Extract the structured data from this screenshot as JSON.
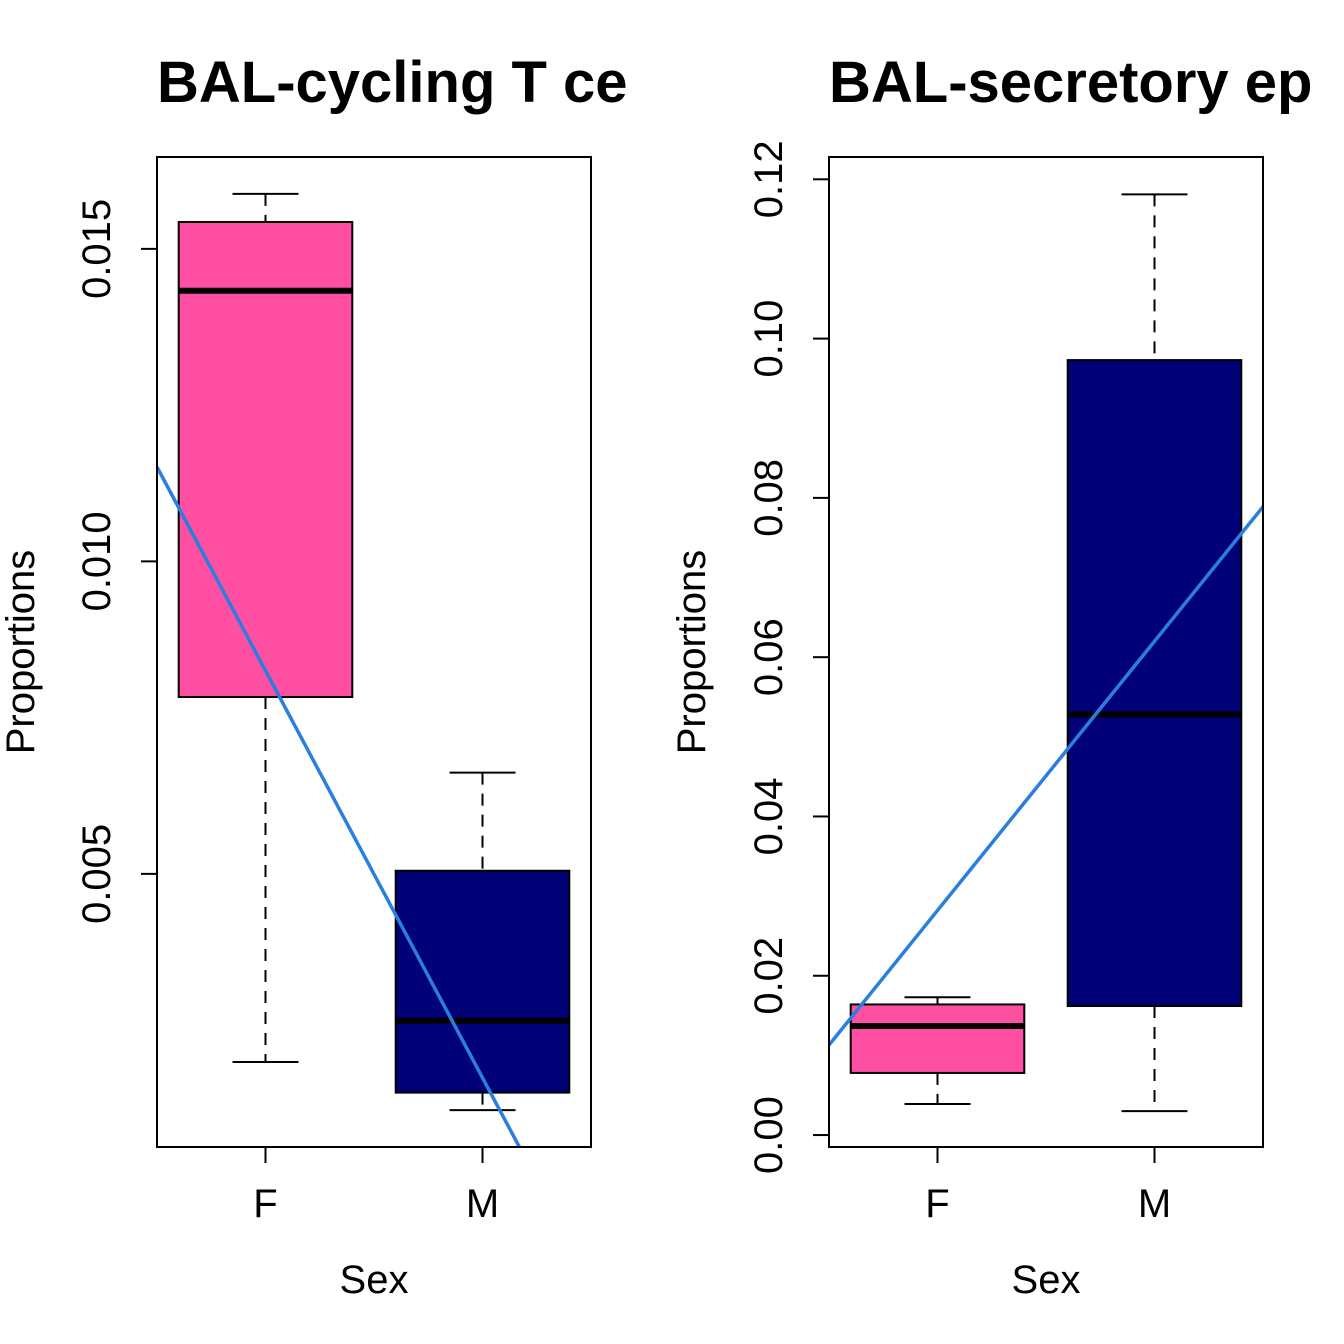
{
  "chart_data": [
    {
      "type": "box",
      "title": "BAL-cycling T ce",
      "xlabel": "Sex",
      "ylabel": "Proportions",
      "categories": [
        "F",
        "M"
      ],
      "yticks": [
        0.005,
        0.01,
        0.015
      ],
      "ytick_labels": [
        "0.005",
        "0.010",
        "0.015"
      ],
      "ylim": [
        0.00063,
        0.01647
      ],
      "boxes": [
        {
          "name": "F",
          "whisker_low": 0.00199,
          "q1": 0.00783,
          "median": 0.01433,
          "q3": 0.01543,
          "whisker_high": 0.01588,
          "color": "#ff4fa3"
        },
        {
          "name": "M",
          "whisker_low": 0.00122,
          "q1": 0.0015,
          "median": 0.00265,
          "q3": 0.00505,
          "whisker_high": 0.00662,
          "color": "#000077"
        }
      ],
      "trend_line": {
        "color": "#2a7fde",
        "start": {
          "x": 0.5,
          "y": 0.01151
        },
        "end": {
          "x": 2.17,
          "y": 0.00063
        }
      },
      "grid": false
    },
    {
      "type": "box",
      "title": "BAL-secretory ep",
      "xlabel": "Sex",
      "ylabel": "Proportions",
      "categories": [
        "F",
        "M"
      ],
      "yticks": [
        0.0,
        0.02,
        0.04,
        0.06,
        0.08,
        0.1,
        0.12
      ],
      "ytick_labels": [
        "0.00",
        "0.02",
        "0.04",
        "0.06",
        "0.08",
        "0.10",
        "0.12"
      ],
      "ylim": [
        -0.0015,
        0.1228
      ],
      "boxes": [
        {
          "name": "F",
          "whisker_low": 0.0039,
          "q1": 0.0078,
          "median": 0.0137,
          "q3": 0.0164,
          "whisker_high": 0.0173,
          "color": "#ff4fa3"
        },
        {
          "name": "M",
          "whisker_low": 0.003,
          "q1": 0.0162,
          "median": 0.0528,
          "q3": 0.0973,
          "whisker_high": 0.1181,
          "color": "#000077"
        }
      ],
      "trend_line": {
        "color": "#2a7fde",
        "start": {
          "x": 0.5,
          "y": 0.0113
        },
        "end": {
          "x": 2.66,
          "y": 0.0843
        }
      },
      "grid": false
    }
  ]
}
